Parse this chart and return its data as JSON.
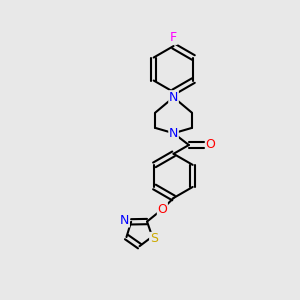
{
  "background_color": "#e8e8e8",
  "atom_colors": {
    "N": "#0000ff",
    "O": "#ff0000",
    "S": "#ccaa00",
    "F": "#ff00ff",
    "C": "#000000"
  },
  "bond_color": "#000000",
  "bond_width": 1.5,
  "figsize": [
    3.0,
    3.0
  ],
  "dpi": 100,
  "xlim": [
    0,
    10
  ],
  "ylim": [
    0,
    10
  ]
}
